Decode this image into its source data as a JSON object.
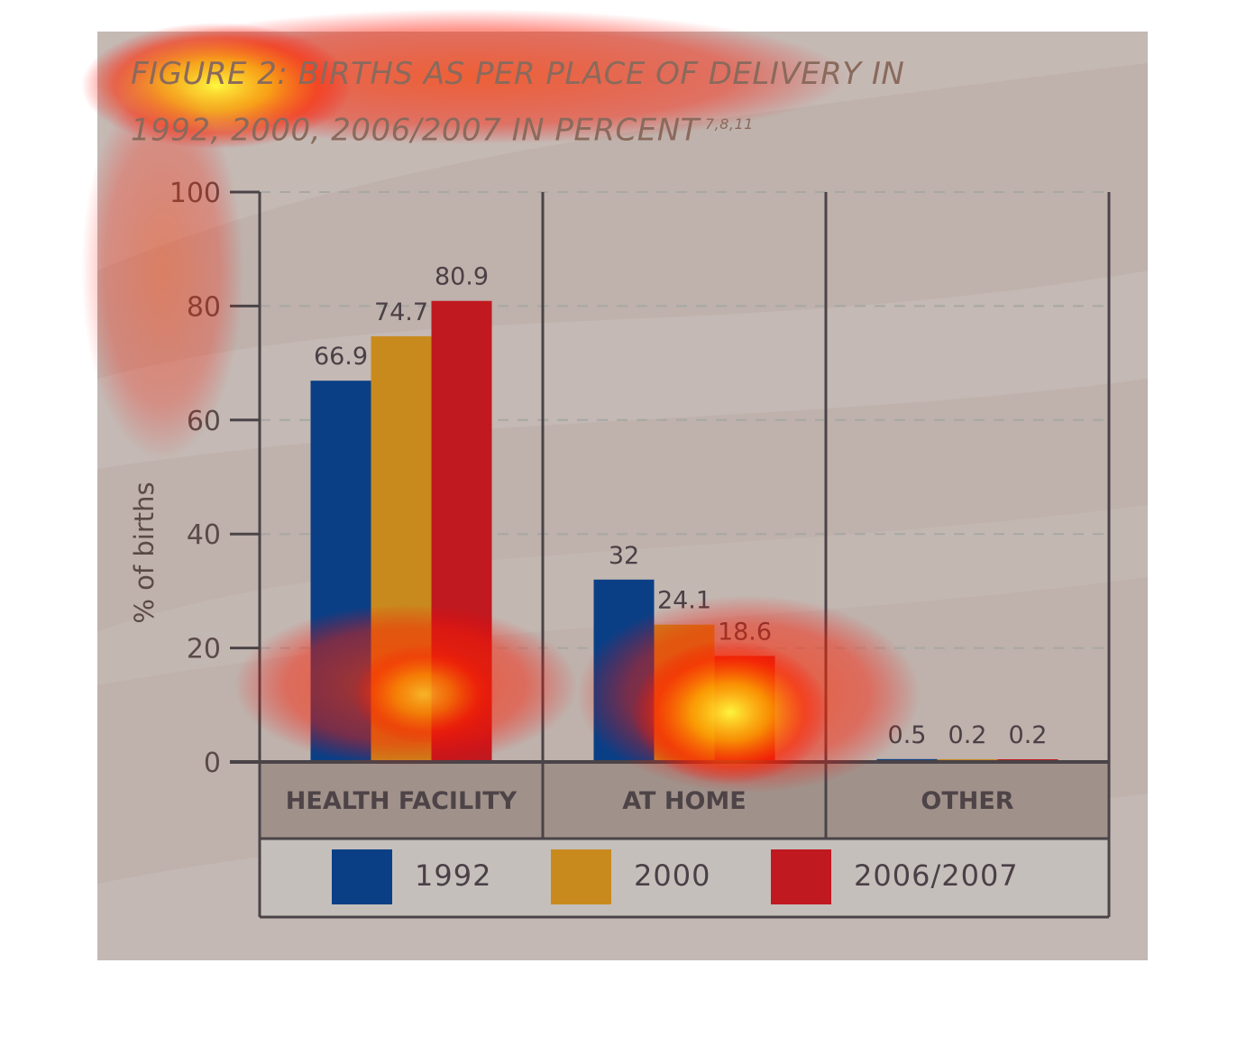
{
  "title": {
    "line1": "FIGURE 2: BIRTHS AS PER PLACE OF DELIVERY IN",
    "line2": "1992, 2000, 2006/2007 IN PERCENT",
    "superscript": "7,8,11"
  },
  "colors": {
    "1992": "#0a3f86",
    "2000": "#c98a1d",
    "2006/2007": "#c0191f",
    "panel": "#bfb1ab",
    "category_band": "#a0928a",
    "legend_band": "#c5bfbc",
    "axis": "#4a4448",
    "grid": "#a8a8a4"
  },
  "chart_data": {
    "type": "bar",
    "title": "FIGURE 2: BIRTHS AS PER PLACE OF DELIVERY IN 1992, 2000, 2006/2007 IN PERCENT",
    "ylabel": "% of births",
    "xlabel": "",
    "ylim": [
      0,
      100
    ],
    "yticks": [
      "0",
      "20",
      "40",
      "60",
      "80",
      "100"
    ],
    "categories": [
      "HEALTH FACILITY",
      "AT HOME",
      "OTHER"
    ],
    "series": [
      {
        "name": "1992",
        "values": [
          66.9,
          32,
          0.5
        ],
        "labels": [
          "66.9",
          "32",
          "0.5"
        ]
      },
      {
        "name": "2000",
        "values": [
          74.7,
          24.1,
          0.2
        ],
        "labels": [
          "74.7",
          "24.1",
          "0.2"
        ]
      },
      {
        "name": "2006/2007",
        "values": [
          80.9,
          18.6,
          0.2
        ],
        "labels": [
          "80.9",
          "18.6",
          "0.2"
        ]
      }
    ],
    "grid": true,
    "legend_position": "bottom"
  }
}
